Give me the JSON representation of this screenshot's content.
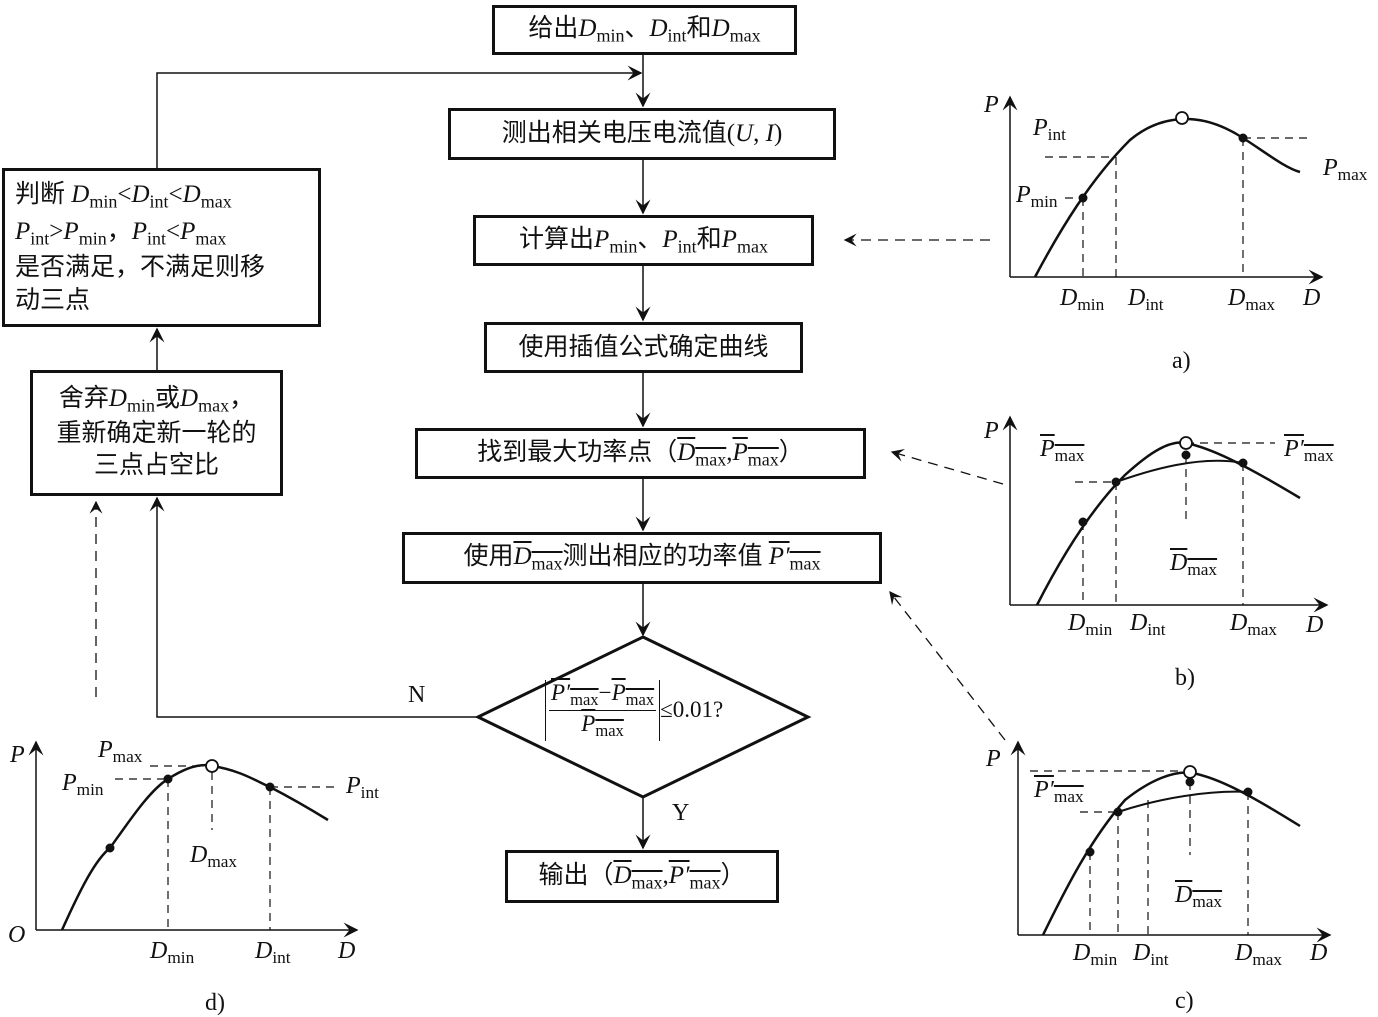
{
  "flow": {
    "step1": "给出$D|min$、$D|int$和$D|max$",
    "step2": "测出相关电压电流值($U$, $I$)",
    "step3": "计算出$P|min$、$P|int$和$P|max$",
    "step4": "使用插值公式确定曲线",
    "step5": "找到最大功率点（#$D|max$#,#$P|max$#）",
    "step6": "使用#$D|max$#测出相应的功率值 #$P′|max$#",
    "decision_num": "#$P′|max$#−#$P|max$#",
    "decision_den": "#$P|max$#",
    "decision_tail": "≤0.01?",
    "output": "输出（#$D|max$#,#$P′|max$#）",
    "judge_line1": "判断 $D|min$<$D|int$<$D|max$",
    "judge_line2": "$P|int$>$P|min$，$P|int$<$P|max$",
    "judge_line3": "是否满足，不满足则移",
    "judge_line4": "动三点",
    "discard_line1": "舍弃$D|min$或$D|max$，",
    "discard_line2": "重新确定新一轮的",
    "discard_line3": "三点占空比",
    "no_label": "N",
    "yes_label": "Y"
  },
  "plots": {
    "a": {
      "caption": "a)",
      "y_axis": "$P$",
      "x_axis": "$D$",
      "p_int": "$P|int$",
      "p_min": "$P|min$",
      "p_max": "$P|max$",
      "d_min": "$D|min$",
      "d_int": "$D|int$",
      "d_max": "$D|max$"
    },
    "b": {
      "caption": "b)",
      "y_axis": "$P$",
      "x_axis": "$D$",
      "p_max_bar": "#$P|max$#",
      "p_max_prime": "#$P′|max$#",
      "d_max_bar": "#$D|max$#",
      "d_min": "$D|min$",
      "d_int": "$D|int$",
      "d_max": "$D|max$"
    },
    "c": {
      "caption": "c)",
      "y_axis": "$P$",
      "x_axis": "$D$",
      "p_max_prime": "#$P′|max$#",
      "d_max_bar": "#$D|max$#",
      "d_min": "$D|min$",
      "d_int": "$D|int$",
      "d_max": "$D|max$"
    },
    "d": {
      "caption": "d)",
      "y_axis": "$P$",
      "x_axis": "$D$",
      "origin": "$O$",
      "p_max": "$P|max$",
      "p_min": "$P|min$",
      "p_int": "$P|int$",
      "d_max": "$D|max$",
      "d_min": "$D|min$",
      "d_int": "$D|int$"
    }
  }
}
